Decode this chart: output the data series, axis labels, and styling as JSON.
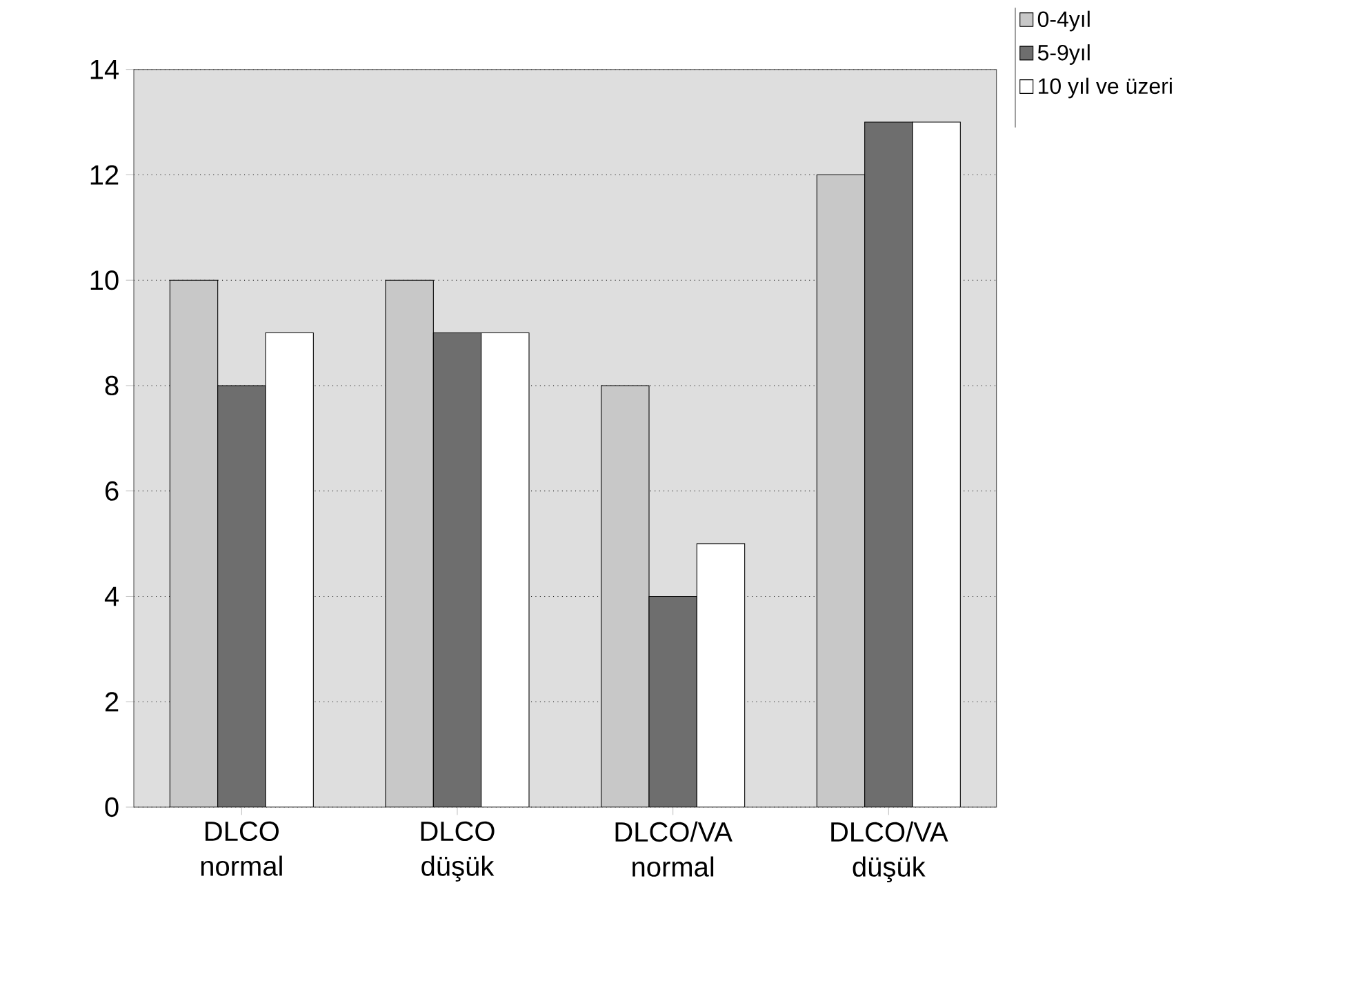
{
  "chart_data": {
    "type": "bar",
    "categories": [
      "DLCO normal",
      "DLCO düşük",
      "DLCO/VA normal",
      "DLCO/VA düşük"
    ],
    "series": [
      {
        "name": "0-4yıl",
        "color": "#c8c8c8",
        "values": [
          10,
          10,
          8,
          12
        ]
      },
      {
        "name": "5-9yıl",
        "color": "#6e6e6e",
        "values": [
          8,
          9,
          4,
          13
        ]
      },
      {
        "name": "10 yıl ve üzeri",
        "color": "#ffffff",
        "values": [
          9,
          9,
          5,
          13
        ]
      }
    ],
    "ylim": [
      0,
      14
    ],
    "yticks": [
      0,
      2,
      4,
      6,
      8,
      10,
      12,
      14
    ],
    "grid": "y",
    "legend": "top right"
  }
}
